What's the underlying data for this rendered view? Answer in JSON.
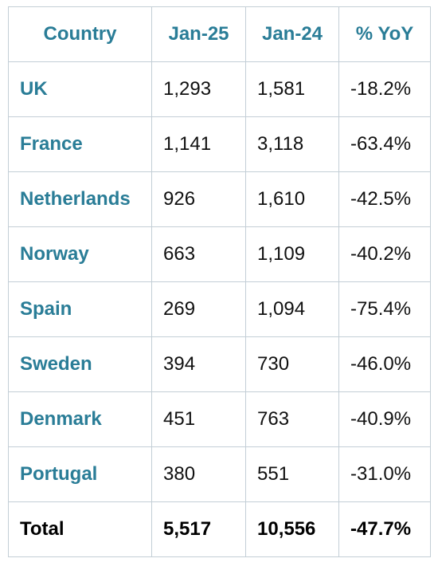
{
  "table": {
    "header": [
      "Country",
      "Jan-25",
      "Jan-24",
      "% YoY"
    ],
    "rows": [
      [
        "UK",
        "1,293",
        "1,581",
        "-18.2%"
      ],
      [
        "France",
        "1,141",
        "3,118",
        "-63.4%"
      ],
      [
        "Netherlands",
        "926",
        "1,610",
        "-42.5%"
      ],
      [
        "Norway",
        "663",
        "1,109",
        "-40.2%"
      ],
      [
        "Spain",
        "269",
        "1,094",
        "-75.4%"
      ],
      [
        "Sweden",
        "394",
        "730",
        "-46.0%"
      ],
      [
        "Denmark",
        "451",
        "763",
        "-40.9%"
      ],
      [
        "Portugal",
        "380",
        "551",
        "-31.0%"
      ]
    ],
    "total": [
      "Total",
      "5,517",
      "10,556",
      "-47.7%"
    ]
  }
}
